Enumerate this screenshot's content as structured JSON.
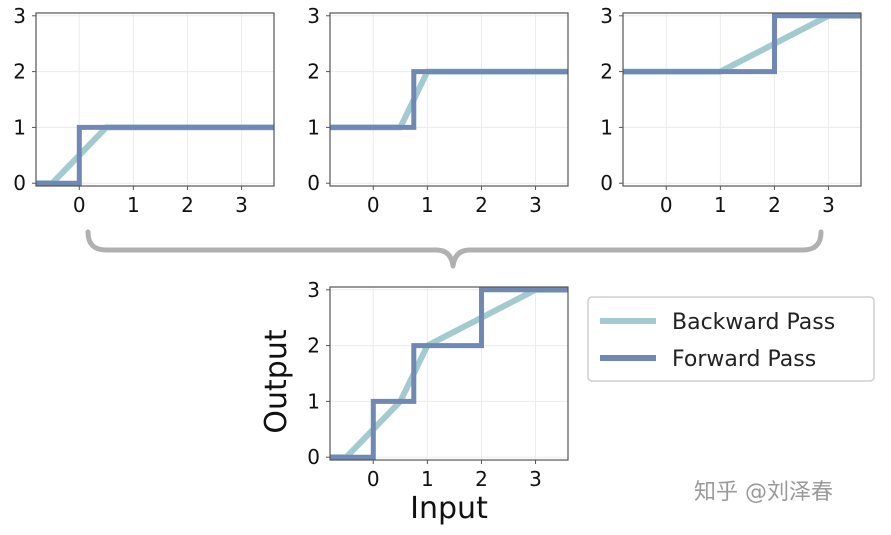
{
  "colors": {
    "backward": "#a3cace",
    "forward": "#6f88b6",
    "frame": "#555555",
    "grid": "#ececec",
    "brace": "#b0b0b0"
  },
  "legend": {
    "items": [
      {
        "label": "Backward Pass",
        "color": "#a3cace"
      },
      {
        "label": "Forward Pass",
        "color": "#6f88b6"
      }
    ],
    "placement": "right-of-bottom-chart"
  },
  "watermark": "知乎 @刘泽春",
  "chart_data": [
    {
      "type": "line",
      "xlim": [
        -0.8,
        3.6
      ],
      "ylim": [
        -0.05,
        3.05
      ],
      "xticks": [
        0,
        1,
        2,
        3
      ],
      "yticks": [
        0,
        1,
        2,
        3
      ],
      "xlabel": "",
      "ylabel": "",
      "grid": true,
      "series": [
        {
          "name": "Backward Pass",
          "x": [
            -0.8,
            -0.5,
            0.5,
            3.6
          ],
          "y": [
            0,
            0,
            1,
            1
          ]
        },
        {
          "name": "Forward Pass",
          "x": [
            -0.8,
            0,
            0,
            3.6
          ],
          "y": [
            0,
            0,
            1,
            1
          ]
        }
      ]
    },
    {
      "type": "line",
      "xlim": [
        -0.8,
        3.6
      ],
      "ylim": [
        -0.05,
        3.05
      ],
      "xticks": [
        0,
        1,
        2,
        3
      ],
      "yticks": [
        0,
        1,
        2,
        3
      ],
      "xlabel": "",
      "ylabel": "",
      "grid": true,
      "series": [
        {
          "name": "Backward Pass",
          "x": [
            -0.8,
            0.5,
            1.0,
            3.6
          ],
          "y": [
            1,
            1,
            2,
            2
          ]
        },
        {
          "name": "Forward Pass",
          "x": [
            -0.8,
            0.75,
            0.75,
            3.6
          ],
          "y": [
            1,
            1,
            2,
            2
          ]
        }
      ]
    },
    {
      "type": "line",
      "xlim": [
        -0.8,
        3.6
      ],
      "ylim": [
        -0.05,
        3.05
      ],
      "xticks": [
        0,
        1,
        2,
        3
      ],
      "yticks": [
        0,
        1,
        2,
        3
      ],
      "xlabel": "",
      "ylabel": "",
      "grid": true,
      "series": [
        {
          "name": "Backward Pass",
          "x": [
            -0.8,
            1.0,
            3.0,
            3.6
          ],
          "y": [
            2,
            2,
            3,
            3
          ]
        },
        {
          "name": "Forward Pass",
          "x": [
            -0.8,
            2.0,
            2.0,
            3.6
          ],
          "y": [
            2,
            2,
            3,
            3
          ]
        }
      ]
    },
    {
      "type": "line",
      "xlim": [
        -0.8,
        3.6
      ],
      "ylim": [
        -0.05,
        3.05
      ],
      "xticks": [
        0,
        1,
        2,
        3
      ],
      "yticks": [
        0,
        1,
        2,
        3
      ],
      "xlabel": "Input",
      "ylabel": "Output",
      "grid": true,
      "series": [
        {
          "name": "Backward Pass",
          "x": [
            -0.8,
            -0.5,
            0.5,
            1.0,
            3.0,
            3.6
          ],
          "y": [
            0,
            0,
            1,
            2,
            3,
            3
          ]
        },
        {
          "name": "Forward Pass",
          "x": [
            -0.8,
            0,
            0,
            0.75,
            0.75,
            2.0,
            2.0,
            3.6
          ],
          "y": [
            0,
            0,
            1,
            1,
            2,
            2,
            3,
            3
          ]
        }
      ]
    }
  ]
}
